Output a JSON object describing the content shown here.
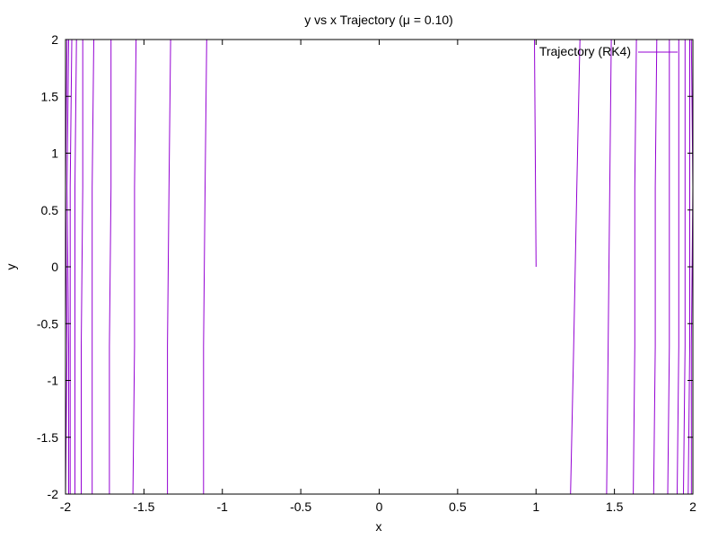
{
  "chart_data": {
    "type": "line",
    "title": "y vs x Trajectory (μ = 0.10)",
    "xlabel": "x",
    "ylabel": "y",
    "xlim": [
      -2,
      2
    ],
    "ylim": [
      -2,
      2
    ],
    "x_ticks": [
      -2,
      -1.5,
      -1,
      -0.5,
      0,
      0.5,
      1,
      1.5,
      2
    ],
    "x_tick_labels": [
      "-2",
      "-1.5",
      "-1",
      "-0.5",
      "0",
      "0.5",
      "1",
      "1.5",
      "2"
    ],
    "y_ticks": [
      -2,
      -1.5,
      -1,
      -0.5,
      0,
      0.5,
      1,
      1.5,
      2
    ],
    "y_tick_labels": [
      "-2",
      "-1.5",
      "-1",
      "-0.5",
      "0",
      "0.5",
      "1",
      "1.5",
      "2"
    ],
    "grid": false,
    "legend": {
      "position": "top-right",
      "entries": [
        "Trajectory (RK4)"
      ]
    },
    "series": [
      {
        "name": "Trajectory (RK4)",
        "color": "#9400d3",
        "segments": [
          {
            "x": [
              1.0,
              0.99
            ],
            "y": [
              0.0,
              2.0
            ]
          },
          {
            "x": [
              1.22,
              1.24,
              1.26,
              1.28
            ],
            "y": [
              -2.0,
              -0.7,
              0.7,
              2.0
            ]
          },
          {
            "x": [
              1.45,
              1.46,
              1.47,
              1.48
            ],
            "y": [
              -2.0,
              -0.7,
              0.7,
              2.0
            ]
          },
          {
            "x": [
              1.62,
              1.63,
              1.63,
              1.64
            ],
            "y": [
              -2.0,
              -0.7,
              0.7,
              2.0
            ]
          },
          {
            "x": [
              1.75,
              1.76,
              1.76,
              1.77
            ],
            "y": [
              -2.0,
              -0.7,
              0.7,
              2.0
            ]
          },
          {
            "x": [
              1.84,
              1.85,
              1.85,
              1.85
            ],
            "y": [
              -2.0,
              -0.7,
              0.7,
              2.0
            ]
          },
          {
            "x": [
              1.9,
              1.91,
              1.91,
              1.91
            ],
            "y": [
              -2.0,
              -0.7,
              0.7,
              2.0
            ]
          },
          {
            "x": [
              1.94,
              1.95,
              1.95,
              1.95
            ],
            "y": [
              -2.0,
              -0.7,
              0.7,
              2.0
            ]
          },
          {
            "x": [
              1.97,
              1.98,
              1.98,
              1.98
            ],
            "y": [
              -2.0,
              -0.7,
              0.7,
              2.0
            ]
          },
          {
            "x": [
              1.99,
              1.99,
              2.0,
              1.99
            ],
            "y": [
              -2.0,
              -0.7,
              0.7,
              2.0
            ]
          },
          {
            "x": [
              -1.1,
              -1.11,
              -1.12,
              -1.12
            ],
            "y": [
              2.0,
              0.7,
              -0.7,
              -2.0
            ]
          },
          {
            "x": [
              -1.33,
              -1.34,
              -1.35,
              -1.35
            ],
            "y": [
              2.0,
              0.7,
              -0.7,
              -2.0
            ]
          },
          {
            "x": [
              -1.55,
              -1.56,
              -1.56,
              -1.57
            ],
            "y": [
              2.0,
              0.7,
              -0.7,
              -2.0
            ]
          },
          {
            "x": [
              -1.71,
              -1.71,
              -1.72,
              -1.72
            ],
            "y": [
              2.0,
              0.7,
              -0.7,
              -2.0
            ]
          },
          {
            "x": [
              -1.82,
              -1.83,
              -1.83,
              -1.83
            ],
            "y": [
              2.0,
              0.7,
              -0.7,
              -2.0
            ]
          },
          {
            "x": [
              -1.89,
              -1.89,
              -1.9,
              -1.9
            ],
            "y": [
              2.0,
              0.7,
              -0.7,
              -2.0
            ]
          },
          {
            "x": [
              -1.93,
              -1.94,
              -1.94,
              -1.94
            ],
            "y": [
              2.0,
              0.7,
              -0.7,
              -2.0
            ]
          },
          {
            "x": [
              -1.96,
              -1.97,
              -1.97,
              -1.97
            ],
            "y": [
              2.0,
              0.7,
              -0.7,
              -2.0
            ]
          },
          {
            "x": [
              -1.98,
              -1.99,
              -1.98,
              -1.98
            ],
            "y": [
              2.0,
              0.7,
              -0.7,
              -2.0
            ]
          },
          {
            "x": [
              -1.99,
              -2.0,
              -1.99,
              -2.0
            ],
            "y": [
              2.0,
              0.7,
              -0.7,
              -2.0
            ]
          }
        ]
      }
    ]
  }
}
